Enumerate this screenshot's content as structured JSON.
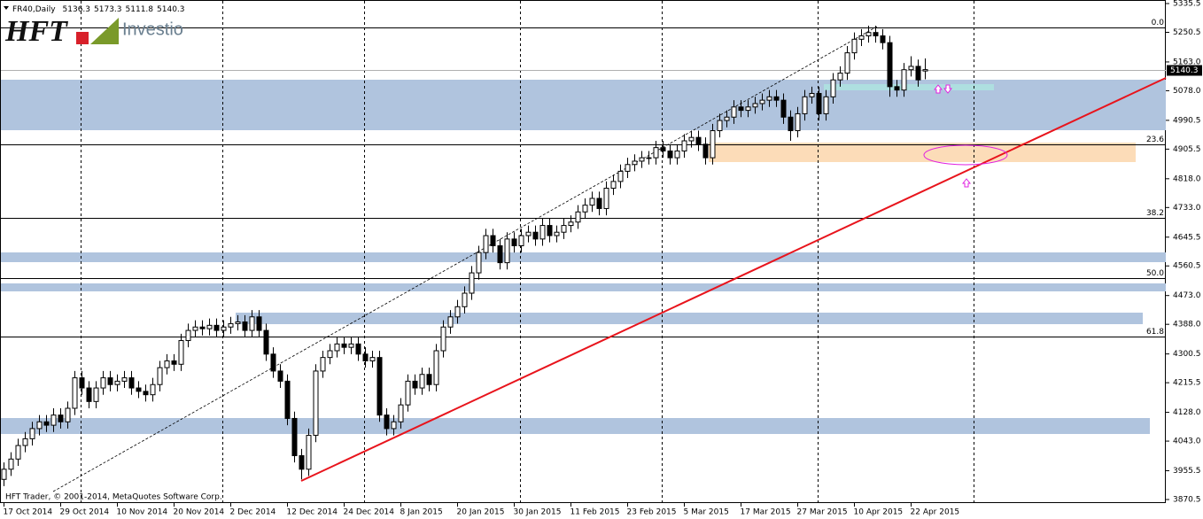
{
  "chart_data": {
    "type": "candlestick",
    "symbol": "FR40,Daily",
    "watermark": "Investio",
    "logo": "HFT",
    "footer": "HFT Trader, © 2001-2014, MetaQuotes Software Corp.",
    "categories": [
      "17 Oct 2014",
      null,
      null,
      null,
      null,
      null,
      null,
      null,
      "29 Oct 2014",
      null,
      null,
      null,
      null,
      null,
      null,
      null,
      "10 Nov 2014",
      null,
      null,
      null,
      null,
      null,
      null,
      null,
      "20 Nov 2014",
      null,
      null,
      null,
      null,
      null,
      null,
      null,
      "2 Dec 2014",
      null,
      null,
      null,
      null,
      null,
      null,
      null,
      "12 Dec 2014",
      null,
      null,
      null,
      null,
      null,
      null,
      null,
      "24 Dec 2014",
      null,
      null,
      null,
      null,
      null,
      null,
      null,
      "8 Jan 2015",
      null,
      null,
      null,
      null,
      null,
      null,
      null,
      "20 Jan 2015",
      null,
      null,
      null,
      null,
      null,
      null,
      null,
      "30 Jan 2015",
      null,
      null,
      null,
      null,
      null,
      null,
      null,
      "11 Feb 2015",
      null,
      null,
      null,
      null,
      null,
      null,
      null,
      "23 Feb 2015",
      null,
      null,
      null,
      null,
      null,
      null,
      null,
      "5 Mar 2015",
      null,
      null,
      null,
      null,
      null,
      null,
      null,
      "17 Mar 2015",
      null,
      null,
      null,
      null,
      null,
      null,
      null,
      "27 Mar 2015",
      null,
      null,
      null,
      null,
      null,
      null,
      null,
      "10 Apr 2015",
      null,
      null,
      null,
      null,
      null,
      null,
      null,
      "22 Apr 2015",
      null,
      null
    ],
    "open": [
      3930,
      3960,
      3990,
      4030,
      4050,
      4080,
      4100,
      4090,
      4120,
      4100,
      4140,
      4230,
      4200,
      4160,
      4200,
      4230,
      4210,
      4220,
      4230,
      4200,
      4190,
      4180,
      4210,
      4260,
      4280,
      4270,
      4340,
      4370,
      4380,
      4375,
      4385,
      4370,
      4380,
      4390,
      4395,
      4370,
      4410,
      4370,
      4300,
      4250,
      4220,
      4110,
      4000,
      3960,
      4060,
      4250,
      4290,
      4310,
      4330,
      4320,
      4330,
      4300,
      4280,
      4290,
      4120,
      4080,
      4100,
      4150,
      4220,
      4200,
      4240,
      4210,
      4310,
      4380,
      4410,
      4440,
      4480,
      4540,
      4600,
      4650,
      4620,
      4570,
      4640,
      4620,
      4650,
      4660,
      4640,
      4680,
      4650,
      4660,
      4680,
      4690,
      4720,
      4740,
      4760,
      4730,
      4790,
      4810,
      4840,
      4860,
      4870,
      4880,
      4880,
      4910,
      4900,
      4880,
      4900,
      4930,
      4940,
      4920,
      4880,
      4960,
      4990,
      5000,
      5030,
      5020,
      5030,
      5040,
      5050,
      5060,
      5050,
      5000,
      4960,
      5010,
      5060,
      5070,
      5010,
      5060,
      5110,
      5130,
      5190,
      5230,
      5240,
      5250,
      5240,
      5220,
      5090,
      5080,
      5140,
      5150,
      5136.3
    ],
    "high": [
      3980,
      4010,
      4050,
      4070,
      4100,
      4120,
      4120,
      4140,
      4140,
      4160,
      4250,
      4250,
      4220,
      4220,
      4250,
      4250,
      4240,
      4250,
      4250,
      4220,
      4210,
      4230,
      4280,
      4300,
      4300,
      4360,
      4390,
      4400,
      4400,
      4405,
      4405,
      4400,
      4410,
      4415,
      4415,
      4430,
      4430,
      4390,
      4320,
      4270,
      4240,
      4130,
      4020,
      4080,
      4270,
      4310,
      4330,
      4350,
      4350,
      4350,
      4350,
      4320,
      4310,
      4310,
      4140,
      4120,
      4170,
      4240,
      4240,
      4260,
      4260,
      4330,
      4400,
      4430,
      4460,
      4500,
      4560,
      4620,
      4670,
      4670,
      4640,
      4660,
      4660,
      4670,
      4680,
      4680,
      4700,
      4700,
      4680,
      4700,
      4710,
      4740,
      4760,
      4780,
      4780,
      4810,
      4830,
      4860,
      4880,
      4890,
      4900,
      4900,
      4930,
      4930,
      4920,
      4920,
      4950,
      4960,
      4960,
      4940,
      4980,
      5010,
      5020,
      5050,
      5050,
      5050,
      5060,
      5070,
      5080,
      5080,
      5070,
      5020,
      5030,
      5080,
      5090,
      5090,
      5080,
      5130,
      5150,
      5210,
      5250,
      5260,
      5270,
      5270,
      5260,
      5240,
      5110,
      5160,
      5180,
      5170,
      5173.3
    ],
    "low": [
      3910,
      3940,
      3970,
      4010,
      4030,
      4060,
      4070,
      4070,
      4080,
      4080,
      4120,
      4180,
      4140,
      4140,
      4180,
      4190,
      4190,
      4200,
      4180,
      4170,
      4160,
      4160,
      4190,
      4240,
      4250,
      4250,
      4320,
      4350,
      4355,
      4355,
      4350,
      4350,
      4360,
      4370,
      4350,
      4350,
      4350,
      4280,
      4230,
      4200,
      4090,
      3980,
      3930,
      3940,
      4040,
      4230,
      4270,
      4290,
      4300,
      4300,
      4280,
      4260,
      4260,
      4100,
      4060,
      4060,
      4080,
      4130,
      4180,
      4180,
      4190,
      4190,
      4290,
      4360,
      4390,
      4420,
      4460,
      4520,
      4580,
      4600,
      4550,
      4550,
      4600,
      4600,
      4630,
      4620,
      4620,
      4630,
      4630,
      4640,
      4660,
      4670,
      4700,
      4720,
      4710,
      4710,
      4770,
      4790,
      4820,
      4840,
      4850,
      4860,
      4860,
      4880,
      4860,
      4860,
      4880,
      4910,
      4900,
      4860,
      4860,
      4940,
      4970,
      4980,
      5000,
      5000,
      5010,
      5020,
      5030,
      5030,
      4980,
      4930,
      4940,
      4990,
      5040,
      4990,
      4990,
      5040,
      5090,
      5110,
      5170,
      5210,
      5220,
      5220,
      5200,
      5060,
      5060,
      5060,
      5120,
      5090,
      5111.8
    ],
    "close": [
      3960,
      3990,
      4030,
      4050,
      4080,
      4100,
      4090,
      4120,
      4100,
      4140,
      4230,
      4200,
      4160,
      4200,
      4230,
      4210,
      4220,
      4230,
      4200,
      4190,
      4180,
      4210,
      4260,
      4280,
      4270,
      4340,
      4370,
      4380,
      4375,
      4385,
      4370,
      4380,
      4390,
      4395,
      4370,
      4410,
      4370,
      4300,
      4250,
      4220,
      4110,
      4000,
      3960,
      4060,
      4250,
      4290,
      4310,
      4330,
      4320,
      4330,
      4300,
      4280,
      4290,
      4120,
      4080,
      4100,
      4150,
      4220,
      4200,
      4240,
      4210,
      4310,
      4380,
      4410,
      4440,
      4480,
      4540,
      4600,
      4650,
      4620,
      4570,
      4640,
      4620,
      4650,
      4660,
      4640,
      4680,
      4650,
      4660,
      4680,
      4690,
      4720,
      4740,
      4760,
      4730,
      4790,
      4810,
      4840,
      4860,
      4870,
      4880,
      4880,
      4910,
      4900,
      4880,
      4900,
      4930,
      4940,
      4920,
      4880,
      4960,
      4990,
      5000,
      5030,
      5020,
      5030,
      5040,
      5050,
      5060,
      5050,
      5000,
      4960,
      5010,
      5060,
      5070,
      5010,
      5060,
      5110,
      5130,
      5190,
      5230,
      5240,
      5250,
      5240,
      5220,
      5090,
      5080,
      5140,
      5150,
      5110,
      5140.3
    ],
    "up_color": "#ffffff",
    "down_color": "#000000",
    "wick_color": "#000000",
    "ylim": [
      3870.5,
      5335.5
    ],
    "yticks": [
      5335.5,
      5250.5,
      {
        "value": 5163.0,
        "label": "5163.0"
      },
      {
        "value": 5078.0,
        "label": "5078.0"
      },
      4990.5,
      4905.5,
      {
        "value": 4818.0,
        "label": "4818.0"
      },
      {
        "value": 4733.0,
        "label": "4733.0"
      },
      4645.5,
      4560.5,
      {
        "value": 4473.0,
        "label": "4473.0"
      },
      {
        "value": 4388.0,
        "label": "4388.0"
      },
      4300.5,
      4215.5,
      {
        "value": 4128.0,
        "label": "4128.0"
      },
      {
        "value": 4043.0,
        "label": "4043.0"
      },
      3955.5,
      3870.5
    ],
    "fib_levels": [
      {
        "value": 5265,
        "label": "0.0"
      },
      {
        "value": 4919.6,
        "label": "23.6"
      },
      {
        "value": 4702,
        "label": "38.2"
      },
      {
        "value": 4524.6,
        "label": "50.0"
      },
      {
        "value": 4352,
        "label": "61.8"
      }
    ]
  }
}
